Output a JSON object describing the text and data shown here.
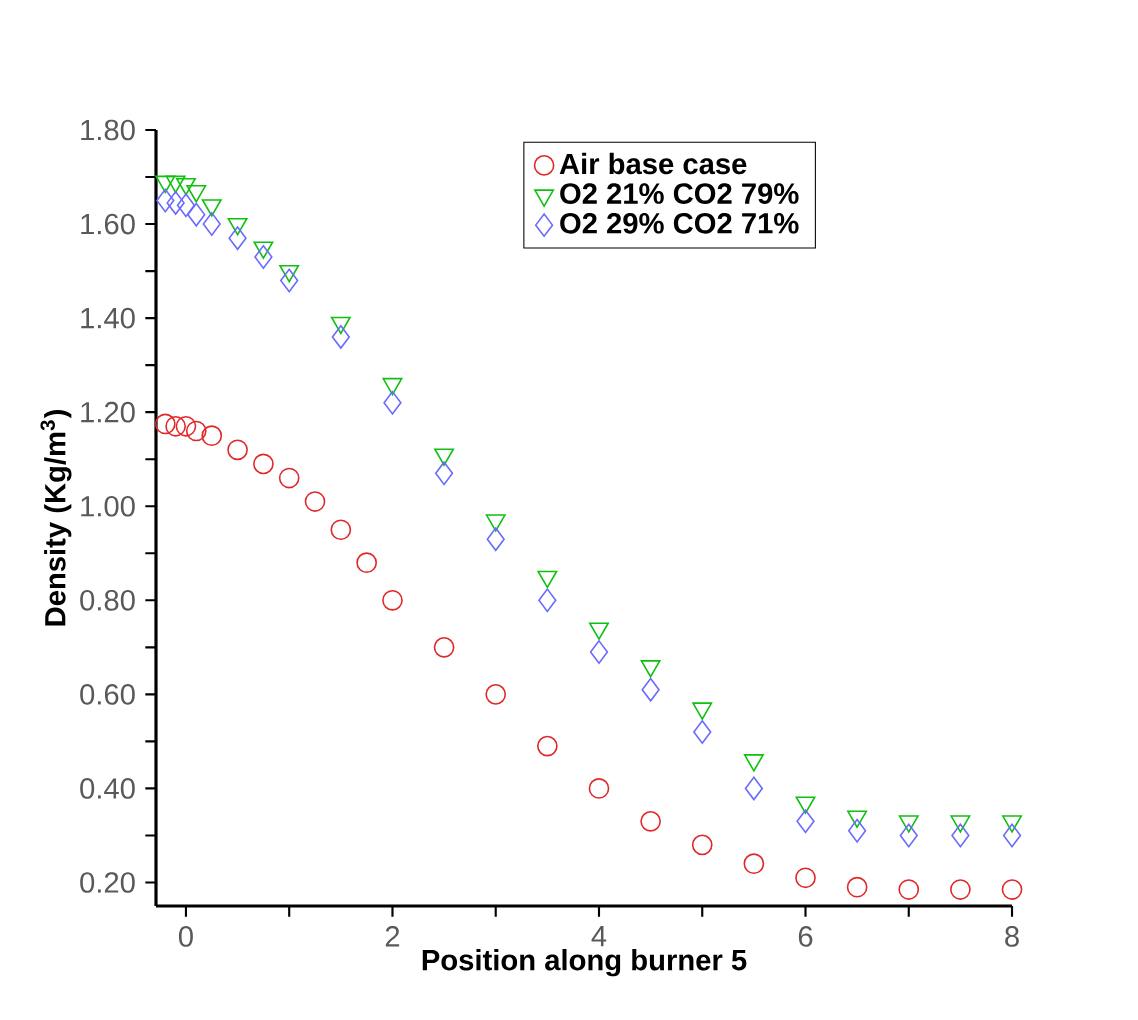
{
  "chart_data": {
    "type": "scatter",
    "xlabel": "Position along burner 5",
    "ylabel": "Density (Kg/m$^{3}$)",
    "xlim": [
      -0.29,
      8
    ],
    "ylim": [
      0.15,
      1.8
    ],
    "xticks": [
      0,
      {
        "value": 1,
        "label": null
      },
      2,
      {
        "value": 3,
        "label": null
      },
      4,
      {
        "value": 5,
        "label": null
      },
      6,
      {
        "value": 7,
        "label": null
      },
      8
    ],
    "yticks": [
      {
        "value": 0.2,
        "label": "0.20"
      },
      {
        "value": 0.3,
        "label": null
      },
      {
        "value": 0.4,
        "label": "0.40"
      },
      {
        "value": 0.5,
        "label": null
      },
      {
        "value": 0.6,
        "label": "0.60"
      },
      {
        "value": 0.7,
        "label": null
      },
      {
        "value": 0.8,
        "label": "0.80"
      },
      {
        "value": 0.9,
        "label": null
      },
      {
        "value": 1.0,
        "label": "1.00"
      },
      {
        "value": 1.1,
        "label": null
      },
      {
        "value": 1.2,
        "label": "1.20"
      },
      {
        "value": 1.3,
        "label": null
      },
      {
        "value": 1.4,
        "label": "1.40"
      },
      {
        "value": 1.5,
        "label": null
      },
      {
        "value": 1.6,
        "label": "1.60"
      },
      {
        "value": 1.7,
        "label": null
      },
      {
        "value": 1.8,
        "label": "1.80"
      }
    ],
    "legend": "top",
    "grid": false,
    "series": [
      {
        "name": "Air base case",
        "color": "#e02828",
        "marker": "circle",
        "x": [
          -0.2,
          -0.1,
          0,
          0.1,
          0.25,
          0.5,
          0.75,
          1,
          1.25,
          1.5,
          1.75,
          2,
          2.5,
          3,
          3.5,
          4,
          4.5,
          5,
          5.5,
          6,
          6.5,
          7,
          7.5,
          8
        ],
        "values": [
          1.175,
          1.17,
          1.17,
          1.16,
          1.15,
          1.12,
          1.09,
          1.06,
          1.01,
          0.95,
          0.88,
          0.8,
          0.7,
          0.6,
          0.49,
          0.4,
          0.33,
          0.28,
          0.24,
          0.21,
          0.19,
          0.185,
          0.185,
          0.185
        ]
      },
      {
        "name": "O2  21%  CO2 79%",
        "color": "#10c010",
        "marker": "triangle",
        "x": [
          -0.2,
          -0.1,
          0,
          0.1,
          0.25,
          0.5,
          0.75,
          1,
          1.5,
          2,
          2.5,
          3,
          3.5,
          4,
          4.5,
          5,
          5.5,
          6,
          6.5,
          7,
          7.5,
          8
        ],
        "values": [
          1.69,
          1.69,
          1.685,
          1.67,
          1.64,
          1.6,
          1.55,
          1.5,
          1.39,
          1.26,
          1.11,
          0.97,
          0.85,
          0.74,
          0.66,
          0.57,
          0.46,
          0.37,
          0.34,
          0.33,
          0.33,
          0.33
        ]
      },
      {
        "name": "O2  29%  CO2 71%",
        "color": "#6a6aff",
        "marker": "diamond",
        "x": [
          -0.2,
          -0.1,
          0,
          0.1,
          0.25,
          0.5,
          0.75,
          1,
          1.5,
          2,
          2.5,
          3,
          3.5,
          4,
          4.5,
          5,
          5.5,
          6,
          6.5,
          7,
          7.5,
          8
        ],
        "values": [
          1.65,
          1.645,
          1.64,
          1.62,
          1.6,
          1.57,
          1.53,
          1.48,
          1.36,
          1.22,
          1.07,
          0.93,
          0.8,
          0.69,
          0.61,
          0.52,
          0.4,
          0.33,
          0.31,
          0.3,
          0.3,
          0.3
        ]
      }
    ]
  }
}
